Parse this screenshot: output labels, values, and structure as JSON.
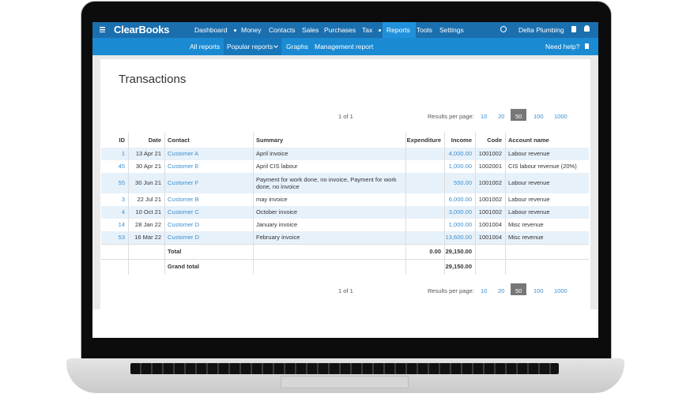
{
  "nav": {
    "brand": "ClearBooks",
    "items": [
      "Dashboard",
      "Money",
      "Contacts",
      "Sales",
      "Purchases",
      "Tax",
      "Reports",
      "Tools",
      "Settings"
    ],
    "active": "Reports",
    "company": "Delta Plumbing"
  },
  "subnav": {
    "items": [
      "All reports",
      "Popular reports",
      "Graphs",
      "Management report"
    ],
    "help": "Need help?"
  },
  "page": {
    "title": "Transactions"
  },
  "pagination": {
    "page_info": "1 of 1",
    "per_page_label": "Results per page:",
    "options": [
      "10",
      "20",
      "50",
      "100",
      "1000"
    ],
    "active": "50"
  },
  "table": {
    "headers": [
      "ID",
      "Date",
      "Contact",
      "Summary",
      "Expenditure",
      "Income",
      "Code",
      "Account name"
    ],
    "rows": [
      {
        "id": "1",
        "date": "13 Apr 21",
        "contact": "Customer A",
        "summary": "April invoice",
        "income": "4,000.00",
        "code": "1001002",
        "account": "Labour revenue"
      },
      {
        "id": "45",
        "date": "30 Apr 21",
        "contact": "Customer E",
        "summary": "April CIS labour",
        "income": "1,000.00",
        "code": "1002001",
        "account": "CIS labour revenue (20%)"
      },
      {
        "id": "55",
        "date": "30 Jun 21",
        "contact": "Customer F",
        "summary": "Payment for work done, no invoice, Payment for work done, no invoice",
        "income": "550.00",
        "code": "1001002",
        "account": "Labour revenue"
      },
      {
        "id": "3",
        "date": "22 Jul 21",
        "contact": "Customer B",
        "summary": "may invoice",
        "income": "6,000.00",
        "code": "1001002",
        "account": "Labour revenue"
      },
      {
        "id": "4",
        "date": "10 Oct 21",
        "contact": "Customer C",
        "summary": "October invoice",
        "income": "3,000.00",
        "code": "1001002",
        "account": "Labour revenue"
      },
      {
        "id": "14",
        "date": "28 Jan 22",
        "contact": "Customer D",
        "summary": "January invoice",
        "income": "1,000.00",
        "code": "1001004",
        "account": "Misc revenue"
      },
      {
        "id": "53",
        "date": "16 Mar 22",
        "contact": "Customer D",
        "summary": "February invoice",
        "income": "13,600.00",
        "code": "1001004",
        "account": "Misc revenue"
      }
    ],
    "total": {
      "label": "Total",
      "expenditure": "0.00",
      "income": "29,150.00"
    },
    "grand_total": {
      "label": "Grand total",
      "income": "29,150.00"
    }
  }
}
